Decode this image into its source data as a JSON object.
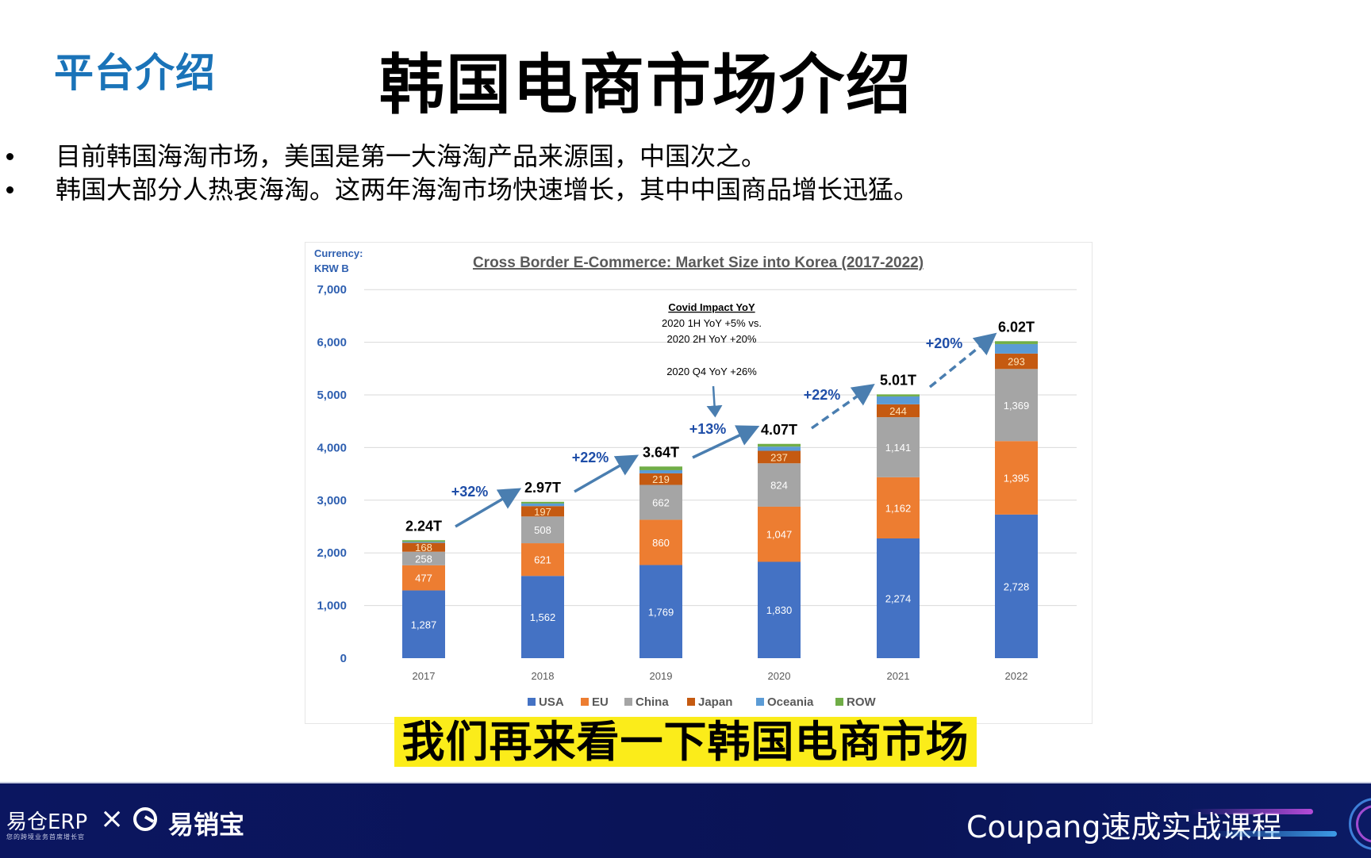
{
  "header": {
    "section_title": "平台介绍",
    "main_title": "韩国电商市场介绍"
  },
  "bullets": [
    "目前韩国海淘市场，美国是第一大海淘产品来源国，中国次之。",
    "韩国大部分人热衷海淘。这两年海淘市场快速增长，其中中国商品增长迅猛。"
  ],
  "chart": {
    "currency_label_line1": "Currency:",
    "currency_label_line2": "KRW B",
    "title": "Cross Border E-Commerce: Market Size into Korea (2017-2022)",
    "annotation": {
      "heading": "Covid Impact YoY",
      "line1": "2020 1H YoY +5% vs.",
      "line2": "2020 2H YoY +20%",
      "line3": "2020 Q4 YoY +26%"
    },
    "y_ticks": [
      "0",
      "1,000",
      "2,000",
      "3,000",
      "4,000",
      "5,000",
      "6,000",
      "7,000"
    ],
    "totals": [
      "2.24T",
      "2.97T",
      "3.64T",
      "4.07T",
      "5.01T",
      "6.02T"
    ],
    "growth": [
      "+32%",
      "+22%",
      "+13%",
      "+22%",
      "+20%"
    ],
    "legend": [
      "USA",
      "EU",
      "China",
      "Japan",
      "Oceania",
      "ROW"
    ]
  },
  "chart_data": {
    "type": "bar",
    "stacked": true,
    "title": "Cross Border E-Commerce: Market Size into Korea (2017-2022)",
    "xlabel": "",
    "ylabel": "Currency: KRW B",
    "ylim": [
      0,
      7000
    ],
    "grid": true,
    "legend_position": "bottom",
    "categories": [
      "2017",
      "2018",
      "2019",
      "2020",
      "2021",
      "2022"
    ],
    "series": [
      {
        "name": "USA",
        "color": "#4472c4",
        "values": [
          1287,
          1562,
          1769,
          1830,
          2274,
          2728
        ]
      },
      {
        "name": "EU",
        "color": "#ed7d31",
        "values": [
          477,
          621,
          860,
          1047,
          1162,
          1395
        ]
      },
      {
        "name": "China",
        "color": "#a5a5a5",
        "values": [
          258,
          508,
          662,
          824,
          1141,
          1369
        ]
      },
      {
        "name": "Japan",
        "color": "#c55a11",
        "values": [
          168,
          197,
          219,
          237,
          244,
          293
        ]
      },
      {
        "name": "Oceania",
        "color": "#5b9bd5",
        "values": [
          20,
          50,
          60,
          80,
          150,
          180
        ]
      },
      {
        "name": "ROW",
        "color": "#70ad47",
        "values": [
          30,
          32,
          70,
          52,
          39,
          55
        ]
      }
    ],
    "totals_labels": [
      "2.24T",
      "2.97T",
      "3.64T",
      "4.07T",
      "5.01T",
      "6.02T"
    ],
    "growth_labels": [
      "+32%",
      "+22%",
      "+13%",
      "+22%",
      "+20%"
    ],
    "annotations": [
      "Covid Impact YoY",
      "2020 1H YoY +5% vs.",
      "2020 2H YoY +20%",
      "2020 Q4 YoY +26%"
    ]
  },
  "caption": "我们再来看一下韩国电商市场",
  "footer": {
    "brand1": "易仓ERP",
    "brand1_sub": "您的跨境业务首席增长官",
    "cross": "×",
    "brand2": "易销宝",
    "course": "Coupang速成实战课程"
  }
}
